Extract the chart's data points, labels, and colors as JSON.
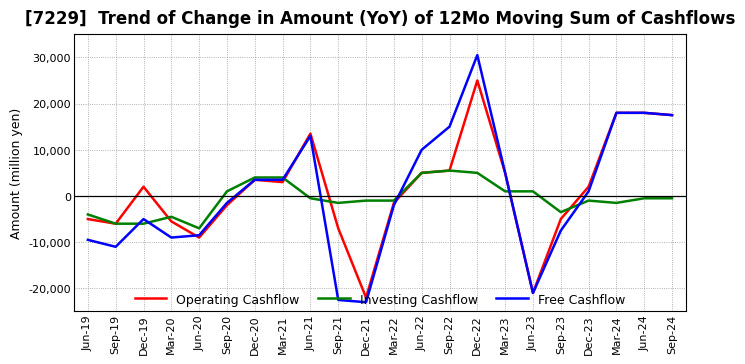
{
  "title": "[7229]  Trend of Change in Amount (YoY) of 12Mo Moving Sum of Cashflows",
  "ylabel": "Amount (million yen)",
  "x_labels": [
    "Jun-19",
    "Sep-19",
    "Dec-19",
    "Mar-20",
    "Jun-20",
    "Sep-20",
    "Dec-20",
    "Mar-21",
    "Jun-21",
    "Sep-21",
    "Dec-21",
    "Mar-22",
    "Jun-22",
    "Sep-22",
    "Dec-22",
    "Mar-23",
    "Jun-23",
    "Sep-23",
    "Dec-23",
    "Mar-24",
    "Jun-24",
    "Sep-24"
  ],
  "operating": [
    -5000,
    -6000,
    2000,
    -5500,
    -9000,
    -2000,
    3500,
    3000,
    13500,
    -7000,
    -22000,
    -1500,
    5000,
    5500,
    25000,
    5000,
    -21000,
    -5000,
    2000,
    18000,
    18000,
    17500
  ],
  "investing": [
    -4000,
    -6000,
    -6000,
    -4500,
    -7000,
    1000,
    4000,
    4000,
    -500,
    -1500,
    -1000,
    -1000,
    5000,
    5500,
    5000,
    1000,
    1000,
    -3500,
    -1000,
    -1500,
    -500,
    -500
  ],
  "free": [
    -9500,
    -11000,
    -5000,
    -9000,
    -8500,
    -1500,
    3500,
    3500,
    13000,
    -22500,
    -23000,
    -2000,
    10000,
    15000,
    30500,
    5000,
    -21000,
    -7500,
    1000,
    18000,
    18000,
    17500
  ],
  "operating_color": "#ff0000",
  "investing_color": "#008000",
  "free_color": "#0000ff",
  "ylim": [
    -25000,
    35000
  ],
  "yticks": [
    -20000,
    -10000,
    0,
    10000,
    20000,
    30000
  ],
  "background_color": "#ffffff",
  "grid_color": "#999999",
  "title_fontsize": 12,
  "axis_fontsize": 9,
  "tick_fontsize": 8,
  "legend_fontsize": 9,
  "line_width": 1.8
}
